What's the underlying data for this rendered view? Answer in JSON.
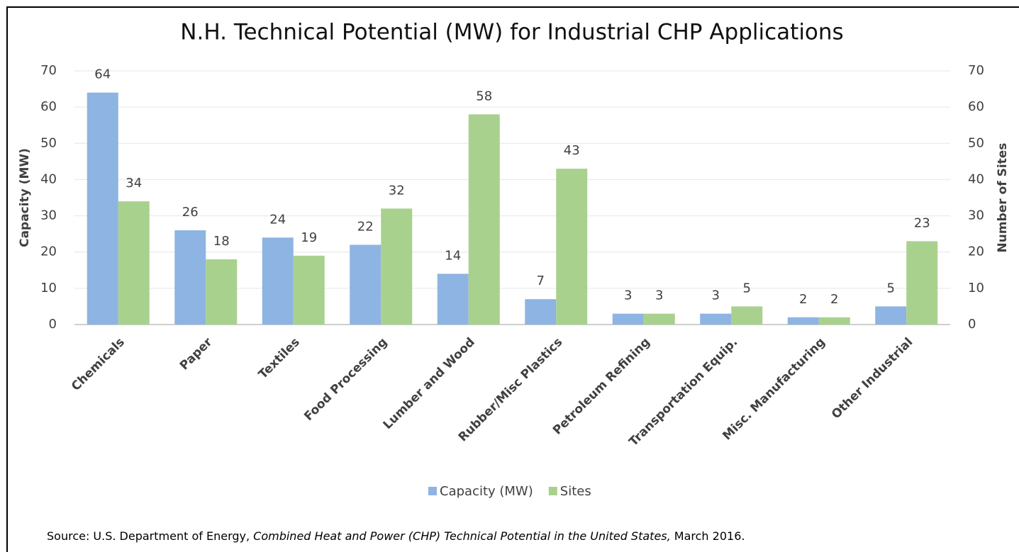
{
  "chart_data": {
    "type": "bar",
    "title": "N.H. Technical Potential (MW) for Industrial CHP Applications",
    "categories": [
      "Chemicals",
      "Paper",
      "Textiles",
      "Food Processing",
      "Lumber and Wood",
      "Rubber/Misc Plastics",
      "Petroleum Refining",
      "Transportation Equip.",
      "Misc. Manufacturing",
      "Other Industrial"
    ],
    "series": [
      {
        "name": "Capacity (MW)",
        "color": "#8db4e2",
        "values": [
          64,
          26,
          24,
          22,
          14,
          7,
          3,
          3,
          2,
          5
        ]
      },
      {
        "name": "Sites",
        "color": "#a9d18e",
        "axis": "y2",
        "values": [
          34,
          18,
          19,
          32,
          58,
          43,
          3,
          5,
          2,
          23
        ]
      }
    ],
    "ylabel": "Capacity (MW)",
    "y2label": "Number of Sites",
    "ylim": [
      0,
      70
    ],
    "yticks": [
      0,
      10,
      20,
      30,
      40,
      50,
      60,
      70
    ],
    "y2lim": [
      0,
      70
    ],
    "y2ticks": [
      0,
      10,
      20,
      30,
      40,
      50,
      60,
      70
    ],
    "grid": true,
    "legend": "bottom",
    "source": [
      "Source: U.S. Department of Energy, ",
      "Combined Heat and Power (CHP) Technical Potential in the United States,",
      " March 2016."
    ]
  }
}
